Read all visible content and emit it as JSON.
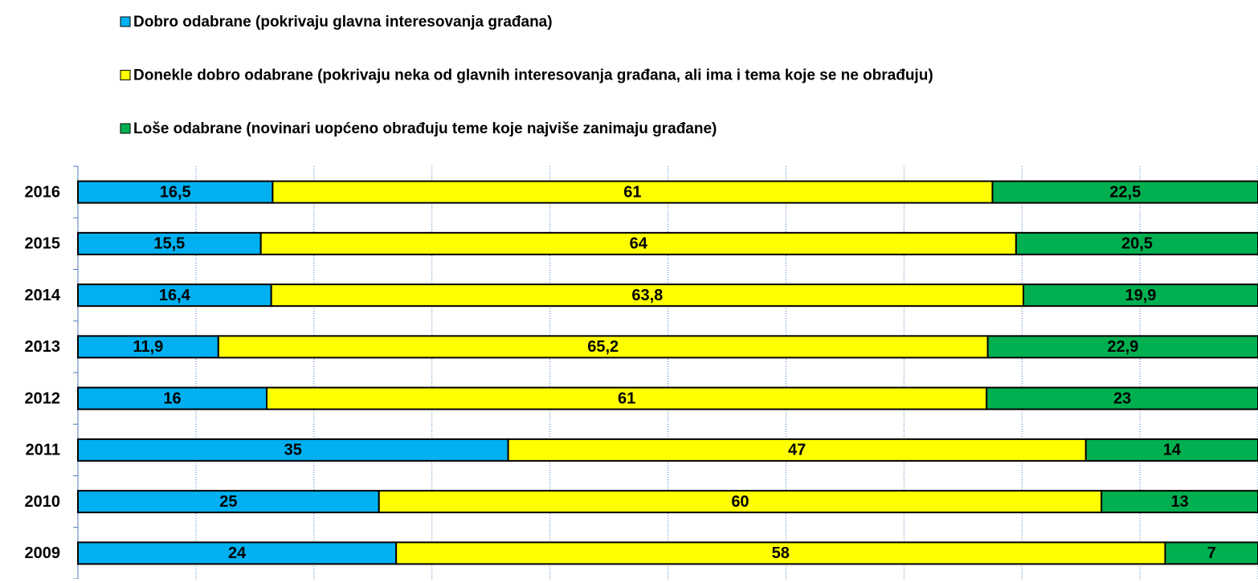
{
  "chart_data": {
    "type": "bar",
    "orientation": "horizontal",
    "stacking": "percent",
    "categories": [
      "2016",
      "2015",
      "2014",
      "2013",
      "2012",
      "2011",
      "2010",
      "2009"
    ],
    "series": [
      {
        "name": "Dobro odabrane (pokrivaju glavna interesovanja građana)",
        "color": "#00b0f0",
        "values": [
          16.5,
          15.5,
          16.4,
          11.9,
          16,
          35,
          25,
          24
        ],
        "value_labels": [
          "16,5",
          "15,5",
          "16,4",
          "11,9",
          "16",
          "35",
          "25",
          "24"
        ]
      },
      {
        "name": "Donekle dobro odabrane (pokrivaju neka od glavnih interesovanja građana, ali ima i tema koje se ne obrađuju)",
        "color": "#ffff00",
        "values": [
          61,
          64,
          63.8,
          65.2,
          61,
          47,
          60,
          58
        ],
        "value_labels": [
          "61",
          "64",
          "63,8",
          "65,2",
          "61",
          "47",
          "60",
          "58"
        ]
      },
      {
        "name": "Loše odabrane (novinari uopćeno obrađuju teme koje najviše zanimaju građane)",
        "color": "#00b050",
        "values": [
          22.5,
          20.5,
          19.9,
          22.9,
          23,
          14,
          13,
          7
        ],
        "value_labels": [
          "22,5",
          "20,5",
          "19,9",
          "22,9",
          "23",
          "14",
          "13",
          "7"
        ]
      }
    ],
    "xlim": [
      0,
      100
    ],
    "xticks": [
      0,
      10,
      20,
      30,
      40,
      50,
      60,
      70,
      80,
      90,
      100
    ],
    "show_x_tick_labels": false,
    "grid": true
  }
}
